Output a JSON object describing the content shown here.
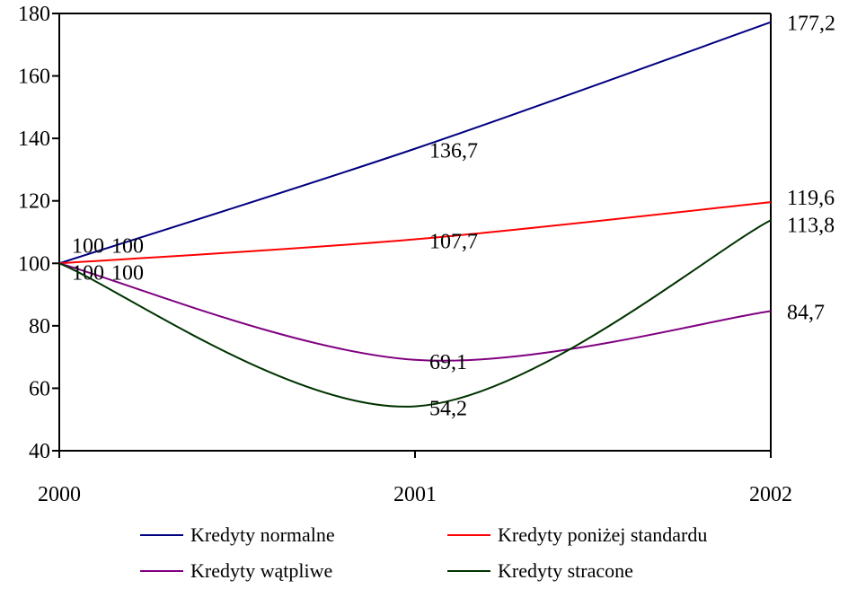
{
  "chart_data": {
    "type": "line",
    "title": "",
    "xlabel": "",
    "ylabel": "",
    "categories": [
      "2000",
      "2001",
      "2002"
    ],
    "ylim": [
      40,
      180
    ],
    "yticks": [
      40,
      60,
      80,
      100,
      120,
      140,
      160,
      180
    ],
    "smooth": true,
    "grid": false,
    "legend_position": "bottom",
    "series": [
      {
        "name": "Kredyty normalne",
        "color": "#000080",
        "values": [
          100,
          136.7,
          177.2
        ],
        "labels": [
          "100",
          "136,7",
          "177,2"
        ]
      },
      {
        "name": "Kredyty poniżej standardu",
        "color": "#ff0000",
        "values": [
          100,
          107.7,
          119.6
        ],
        "labels": [
          "100",
          "107,7",
          "119,6"
        ]
      },
      {
        "name": "Kredyty wątpliwe",
        "color": "#800080",
        "values": [
          100,
          69.1,
          84.7
        ],
        "labels": [
          "100",
          "69,1",
          "84,7"
        ]
      },
      {
        "name": "Kredyty stracone",
        "color": "#003300",
        "values": [
          100,
          54.2,
          113.8
        ],
        "labels": [
          "100",
          "54,2",
          "113,8"
        ]
      }
    ]
  }
}
